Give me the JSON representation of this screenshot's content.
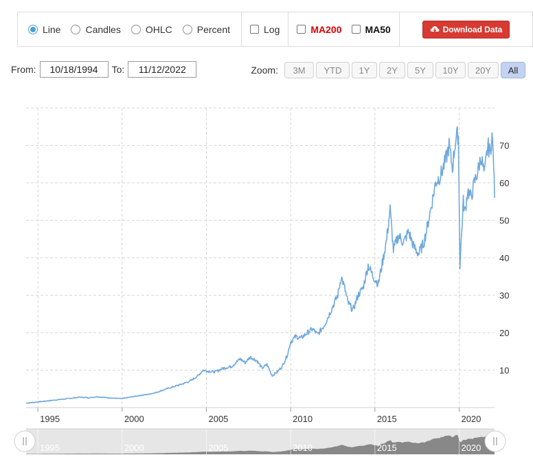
{
  "toolbar": {
    "chart_types": [
      {
        "label": "Line",
        "selected": true
      },
      {
        "label": "Candles",
        "selected": false
      },
      {
        "label": "OHLC",
        "selected": false
      },
      {
        "label": "Percent",
        "selected": false
      }
    ],
    "log_label": "Log",
    "ma200_label": "MA200",
    "ma50_label": "MA50",
    "download_label": "Download Data",
    "colors": {
      "accent": "#4a9fd6",
      "download": "#d63a32",
      "ma200": "#e00000"
    }
  },
  "range": {
    "from_label": "From:",
    "from_value": "10/18/1994",
    "to_label": "To:",
    "to_value": "11/12/2022"
  },
  "zoom": {
    "label": "Zoom:",
    "buttons": [
      "3M",
      "YTD",
      "1Y",
      "2Y",
      "5Y",
      "10Y",
      "20Y",
      "All"
    ],
    "active": "All"
  },
  "chart_data": {
    "type": "line",
    "color": "#6fa8dc",
    "xlim": [
      1994.3,
      2022.1
    ],
    "ylim": [
      0,
      80
    ],
    "y_ticks": [
      10,
      20,
      30,
      40,
      50,
      60,
      70
    ],
    "x_ticks": [
      1995,
      2000,
      2005,
      2010,
      2015,
      2020
    ],
    "grid": true,
    "series": [
      {
        "x": [
          1994.3,
          1995.0,
          1996.0,
          1997.0,
          1997.5,
          1998.0,
          1998.5,
          1999.0,
          1999.5,
          2000.0,
          2000.5,
          2001.0,
          2001.5,
          2002.0,
          2002.5,
          2003.0,
          2003.5,
          2004.0,
          2004.5,
          2004.8,
          2005.0,
          2005.5,
          2006.0,
          2006.5,
          2007.0,
          2007.3,
          2007.6,
          2008.0,
          2008.3,
          2008.6,
          2008.9,
          2009.2,
          2009.5,
          2009.8,
          2010.0,
          2010.3,
          2010.6,
          2011.0,
          2011.3,
          2011.6,
          2012.0,
          2012.4,
          2012.8,
          2013.0,
          2013.2,
          2013.4,
          2013.7,
          2014.0,
          2014.3,
          2014.6,
          2014.9,
          2015.2,
          2015.5,
          2015.7,
          2015.9,
          2016.1,
          2016.4,
          2016.7,
          2017.0,
          2017.3,
          2017.6,
          2017.9,
          2018.1,
          2018.4,
          2018.6,
          2018.9,
          2019.2,
          2019.4,
          2019.6,
          2019.8,
          2019.95,
          2020.05,
          2020.15,
          2020.25,
          2020.35,
          2020.5,
          2020.7,
          2020.9,
          2021.1,
          2021.3,
          2021.5,
          2021.7,
          2021.85,
          2021.95,
          2022.05,
          2022.1
        ],
        "y": [
          1.2,
          1.5,
          2.0,
          2.5,
          2.8,
          2.6,
          2.9,
          2.7,
          2.5,
          2.4,
          2.8,
          3.2,
          3.5,
          4.0,
          4.8,
          5.5,
          6.2,
          7.0,
          8.5,
          10.0,
          9.8,
          9.5,
          10.5,
          11.0,
          13.0,
          12.0,
          13.5,
          12.5,
          10.5,
          11.5,
          8.5,
          9.5,
          11.0,
          14.0,
          17.5,
          19.0,
          18.5,
          20.0,
          21.0,
          19.5,
          22.0,
          26.0,
          30.0,
          35.0,
          32.0,
          28.0,
          26.0,
          30.0,
          32.0,
          38.0,
          35.0,
          33.0,
          40.0,
          45.0,
          53.0,
          42.0,
          46.0,
          44.0,
          47.0,
          43.0,
          41.0,
          44.0,
          48.0,
          55.0,
          60.0,
          62.0,
          66.0,
          70.0,
          64.0,
          72.0,
          73.0,
          38.0,
          47.0,
          55.0,
          52.0,
          58.0,
          56.0,
          60.0,
          63.0,
          67.0,
          62.0,
          70.0,
          68.0,
          73.0,
          65.0,
          56.0
        ]
      }
    ],
    "navigator": {
      "x_ticks": [
        1995,
        2000,
        2005,
        2010,
        2015,
        2020
      ],
      "fill": "#888888"
    }
  }
}
